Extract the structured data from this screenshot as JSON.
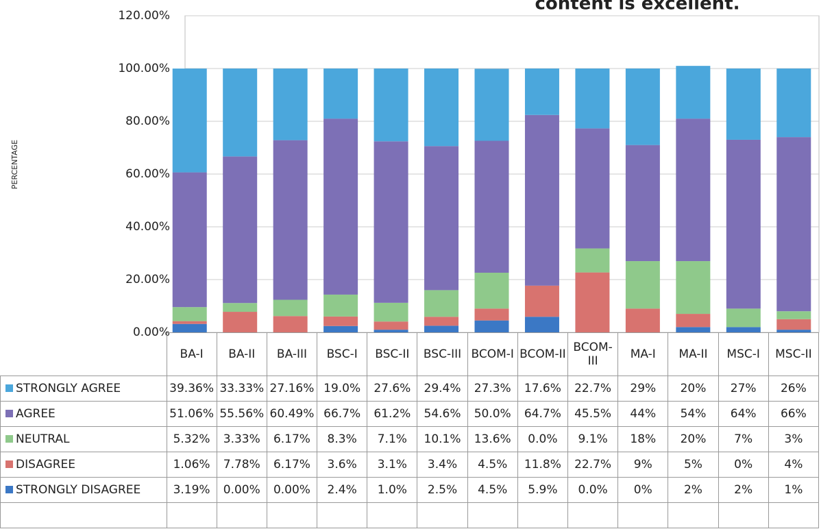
{
  "chart_data": {
    "type": "stacked_bar",
    "title": "content is excellent.",
    "y_label": "PERCENTAGE",
    "categories": [
      "BA-I",
      "BA-II",
      "BA-III",
      "BSC-I",
      "BSC-II",
      "BSC-III",
      "BCOM-I",
      "BCOM-II",
      "BCOM-III",
      "MA-I",
      "MA-II",
      "MSC-I",
      "MSC-II"
    ],
    "series": [
      {
        "name": "STRONGLY AGREE",
        "color": "#4ba7dc",
        "values": [
          39.36,
          33.33,
          27.16,
          19.0,
          27.6,
          29.4,
          27.3,
          17.6,
          22.7,
          29,
          20,
          27,
          26
        ],
        "value_labels": [
          "39.36%",
          "33.33%",
          "27.16%",
          "19.0%",
          "27.6%",
          "29.4%",
          "27.3%",
          "17.6%",
          "22.7%",
          "29%",
          "20%",
          "27%",
          "26%"
        ]
      },
      {
        "name": "AGREE",
        "color": "#7d70b6",
        "values": [
          51.06,
          55.56,
          60.49,
          66.7,
          61.2,
          54.6,
          50.0,
          64.7,
          45.5,
          44,
          54,
          64,
          66
        ],
        "value_labels": [
          "51.06%",
          "55.56%",
          "60.49%",
          "66.7%",
          "61.2%",
          "54.6%",
          "50.0%",
          "64.7%",
          "45.5%",
          "44%",
          "54%",
          "64%",
          "66%"
        ]
      },
      {
        "name": "NEUTRAL",
        "color": "#8fc98b",
        "values": [
          5.32,
          3.33,
          6.17,
          8.3,
          7.1,
          10.1,
          13.6,
          0.0,
          9.1,
          18,
          20,
          7,
          3
        ],
        "value_labels": [
          "5.32%",
          "3.33%",
          "6.17%",
          "8.3%",
          "7.1%",
          "10.1%",
          "13.6%",
          "0.0%",
          "9.1%",
          "18%",
          "20%",
          "7%",
          "3%"
        ]
      },
      {
        "name": "DISAGREE",
        "color": "#d8736f",
        "values": [
          1.06,
          7.78,
          6.17,
          3.6,
          3.1,
          3.4,
          4.5,
          11.8,
          22.7,
          9,
          5,
          0,
          4
        ],
        "value_labels": [
          "1.06%",
          "7.78%",
          "6.17%",
          "3.6%",
          "3.1%",
          "3.4%",
          "4.5%",
          "11.8%",
          "22.7%",
          "9%",
          "5%",
          "0%",
          "4%"
        ]
      },
      {
        "name": "STRONGLY DISAGREE",
        "color": "#3b78c5",
        "values": [
          3.19,
          0.0,
          0.0,
          2.4,
          1.0,
          2.5,
          4.5,
          5.9,
          0.0,
          0,
          2,
          2,
          1
        ],
        "value_labels": [
          "3.19%",
          "0.00%",
          "0.00%",
          "2.4%",
          "1.0%",
          "2.5%",
          "4.5%",
          "5.9%",
          "0.0%",
          "0%",
          "2%",
          "2%",
          "1%"
        ]
      }
    ],
    "ylim": [
      0,
      120
    ],
    "yticks": [
      {
        "value": 0,
        "label": "0.00%"
      },
      {
        "value": 20,
        "label": "20.00%"
      },
      {
        "value": 40,
        "label": "40.00%"
      },
      {
        "value": 60,
        "label": "60.00%"
      },
      {
        "value": 80,
        "label": "80.00%"
      },
      {
        "value": 100,
        "label": "100.00%"
      },
      {
        "value": 120,
        "label": "120.00%"
      }
    ],
    "grid": true
  }
}
